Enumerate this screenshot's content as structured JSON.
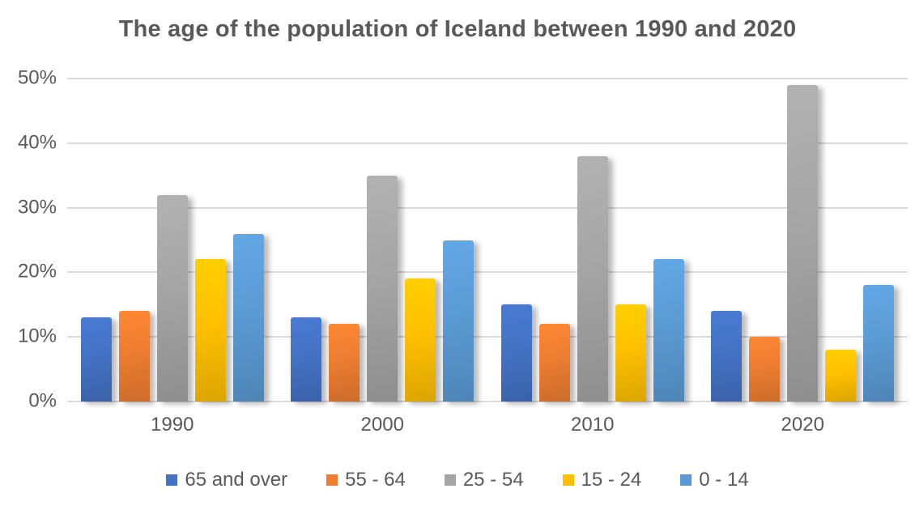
{
  "title": "The age of the population of Iceland between 1990 and 2020",
  "chart_data": {
    "type": "bar",
    "title": "The age of the population of Iceland between 1990 and 2020",
    "categories": [
      "1990",
      "2000",
      "2010",
      "2020"
    ],
    "series": [
      {
        "name": "65 and over",
        "color": "#4472C4",
        "values": [
          13,
          13,
          15,
          14
        ]
      },
      {
        "name": "55 - 64",
        "color": "#ED7D31",
        "values": [
          14,
          12,
          12,
          10
        ]
      },
      {
        "name": "25 - 54",
        "color": "#A5A5A5",
        "values": [
          32,
          35,
          38,
          49
        ]
      },
      {
        "name": "15 - 24",
        "color": "#FFC000",
        "values": [
          22,
          19,
          15,
          8
        ]
      },
      {
        "name": "0 - 14",
        "color": "#5B9BD5",
        "values": [
          26,
          25,
          22,
          18
        ]
      }
    ],
    "xlabel": "",
    "ylabel": "",
    "ylim": [
      0,
      50
    ],
    "yticks": [
      "0%",
      "10%",
      "20%",
      "30%",
      "40%",
      "50%"
    ],
    "grid": "horizontal",
    "legend_position": "bottom",
    "colors": {
      "title_text": "#595959",
      "axis_text": "#595959",
      "gridline": "#D9D9D9"
    }
  }
}
